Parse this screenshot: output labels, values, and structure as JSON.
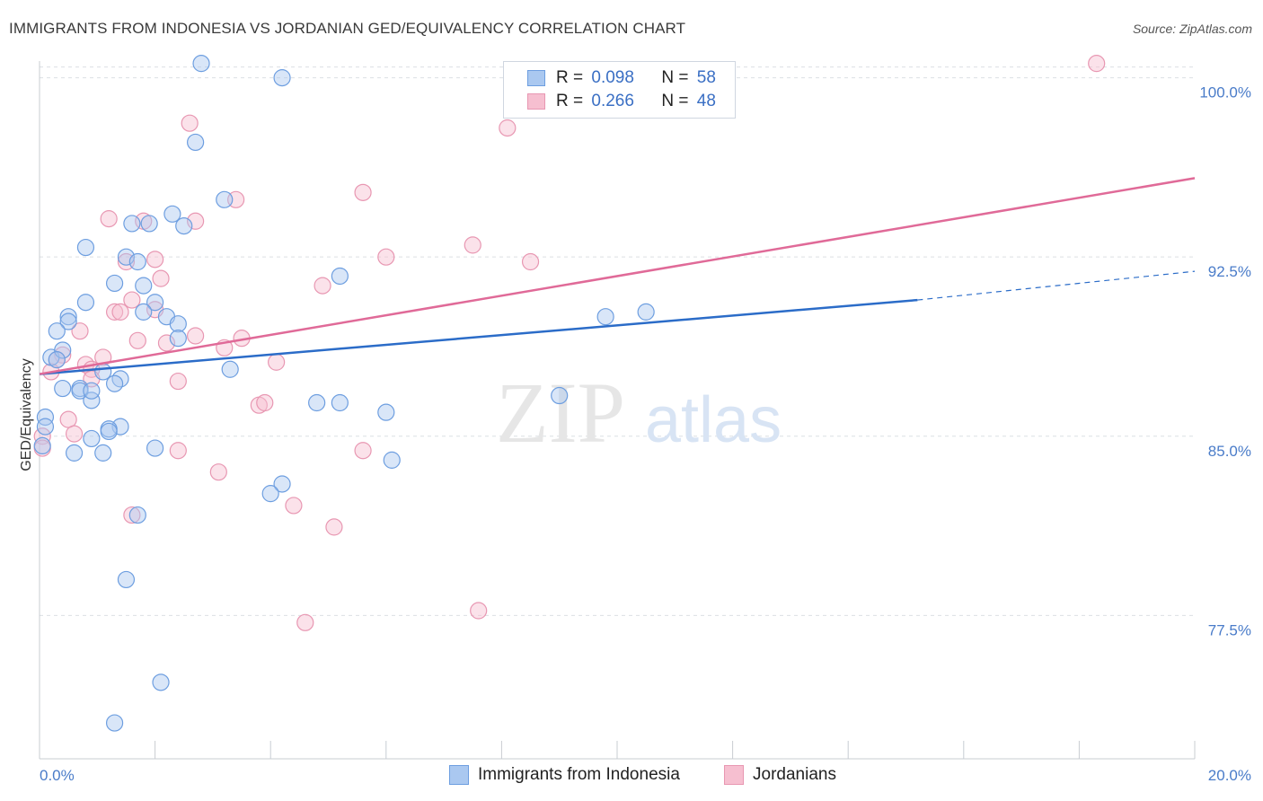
{
  "title": "IMMIGRANTS FROM INDONESIA VS JORDANIAN GED/EQUIVALENCY CORRELATION CHART",
  "source": "Source: ZipAtlas.com",
  "watermark": {
    "zip": "ZIP",
    "atlas": "atlas"
  },
  "legend": {
    "r_label": "R =",
    "n_label": "N =",
    "rows": [
      {
        "r": "0.098",
        "n": "58"
      },
      {
        "r": "0.266",
        "n": "48"
      }
    ]
  },
  "colors": {
    "blue_fill": "#aac8f0",
    "blue_stroke": "#6d9ee0",
    "blue_line": "#2b6cc8",
    "pink_fill": "#f6bfd0",
    "pink_stroke": "#e897b2",
    "pink_line": "#e06a98",
    "grid": "#dcdfe4",
    "tick_text": "#4a7cc9"
  },
  "chart_data": {
    "type": "scatter",
    "title": "IMMIGRANTS FROM INDONESIA VS JORDANIAN GED/EQUIVALENCY CORRELATION CHART",
    "xlabel": "",
    "ylabel": "GED/Equivalency",
    "xlim": [
      0,
      20
    ],
    "ylim": [
      71.5,
      101.0
    ],
    "x_tick_labels": [
      "0.0%",
      "20.0%"
    ],
    "y_ticks": [
      77.5,
      85.0,
      92.5,
      100.0
    ],
    "y_tick_labels": [
      "77.5%",
      "85.0%",
      "92.5%",
      "100.0%"
    ],
    "grid": true,
    "legend_position": "bottom",
    "series": [
      {
        "name": "Immigrants from Indonesia",
        "color": "blue",
        "trend": {
          "x": [
            0,
            15.2
          ],
          "y": [
            87.6,
            90.7
          ],
          "dashed_to_x": 20,
          "dashed_to_y": 91.9
        },
        "points": [
          [
            2.8,
            100.6
          ],
          [
            4.2,
            100.0
          ],
          [
            2.7,
            97.3
          ],
          [
            3.2,
            94.9
          ],
          [
            1.6,
            93.9
          ],
          [
            1.9,
            93.9
          ],
          [
            2.3,
            94.3
          ],
          [
            2.5,
            93.8
          ],
          [
            0.8,
            92.9
          ],
          [
            1.5,
            92.5
          ],
          [
            1.7,
            92.3
          ],
          [
            5.2,
            91.7
          ],
          [
            1.3,
            91.4
          ],
          [
            1.8,
            91.3
          ],
          [
            0.8,
            90.6
          ],
          [
            2.0,
            90.6
          ],
          [
            1.8,
            90.2
          ],
          [
            0.5,
            90.0
          ],
          [
            0.5,
            89.8
          ],
          [
            2.2,
            90.0
          ],
          [
            0.3,
            89.4
          ],
          [
            2.4,
            89.7
          ],
          [
            2.4,
            89.1
          ],
          [
            9.8,
            90.0
          ],
          [
            10.5,
            90.2
          ],
          [
            0.2,
            88.3
          ],
          [
            0.4,
            88.6
          ],
          [
            0.3,
            88.2
          ],
          [
            3.3,
            87.8
          ],
          [
            1.1,
            87.7
          ],
          [
            1.4,
            87.4
          ],
          [
            1.3,
            87.2
          ],
          [
            0.4,
            87.0
          ],
          [
            0.7,
            87.0
          ],
          [
            0.7,
            86.9
          ],
          [
            0.9,
            86.5
          ],
          [
            4.8,
            86.4
          ],
          [
            5.2,
            86.4
          ],
          [
            6.0,
            86.0
          ],
          [
            9.0,
            86.7
          ],
          [
            0.1,
            85.8
          ],
          [
            0.1,
            85.4
          ],
          [
            1.4,
            85.4
          ],
          [
            1.2,
            85.3
          ],
          [
            1.2,
            85.2
          ],
          [
            0.9,
            84.9
          ],
          [
            0.6,
            84.3
          ],
          [
            1.1,
            84.3
          ],
          [
            2.0,
            84.5
          ],
          [
            6.1,
            84.0
          ],
          [
            4.2,
            83.0
          ],
          [
            4.0,
            82.6
          ],
          [
            1.7,
            81.7
          ],
          [
            1.5,
            79.0
          ],
          [
            2.1,
            74.7
          ],
          [
            1.3,
            73.0
          ],
          [
            0.05,
            84.6
          ],
          [
            0.9,
            86.9
          ]
        ]
      },
      {
        "name": "Jordanians",
        "color": "pink",
        "trend": {
          "x": [
            0,
            20
          ],
          "y": [
            87.6,
            95.8
          ]
        },
        "points": [
          [
            18.3,
            100.6
          ],
          [
            2.6,
            98.1
          ],
          [
            8.1,
            97.9
          ],
          [
            5.6,
            95.2
          ],
          [
            3.4,
            94.9
          ],
          [
            1.2,
            94.1
          ],
          [
            1.8,
            94.0
          ],
          [
            2.7,
            94.0
          ],
          [
            7.5,
            93.0
          ],
          [
            6.0,
            92.5
          ],
          [
            8.5,
            92.3
          ],
          [
            1.5,
            92.3
          ],
          [
            2.0,
            92.4
          ],
          [
            2.1,
            91.6
          ],
          [
            4.9,
            91.3
          ],
          [
            1.6,
            90.7
          ],
          [
            1.3,
            90.2
          ],
          [
            1.4,
            90.2
          ],
          [
            2.0,
            90.3
          ],
          [
            0.7,
            89.4
          ],
          [
            3.5,
            89.1
          ],
          [
            2.7,
            89.2
          ],
          [
            1.7,
            89.0
          ],
          [
            2.2,
            88.9
          ],
          [
            3.2,
            88.7
          ],
          [
            0.4,
            88.4
          ],
          [
            1.1,
            88.3
          ],
          [
            0.3,
            88.2
          ],
          [
            4.1,
            88.1
          ],
          [
            0.8,
            88.0
          ],
          [
            0.9,
            87.8
          ],
          [
            0.2,
            87.7
          ],
          [
            0.9,
            87.4
          ],
          [
            2.4,
            87.3
          ],
          [
            3.8,
            86.3
          ],
          [
            3.9,
            86.4
          ],
          [
            0.5,
            85.7
          ],
          [
            0.6,
            85.1
          ],
          [
            2.4,
            84.4
          ],
          [
            5.6,
            84.4
          ],
          [
            3.1,
            83.5
          ],
          [
            4.4,
            82.1
          ],
          [
            1.6,
            81.7
          ],
          [
            5.1,
            81.2
          ],
          [
            4.6,
            77.2
          ],
          [
            7.6,
            77.7
          ],
          [
            0.05,
            85.0
          ],
          [
            0.05,
            84.5
          ]
        ]
      }
    ]
  },
  "bottom_legend": [
    "Immigrants from Indonesia",
    "Jordanians"
  ]
}
